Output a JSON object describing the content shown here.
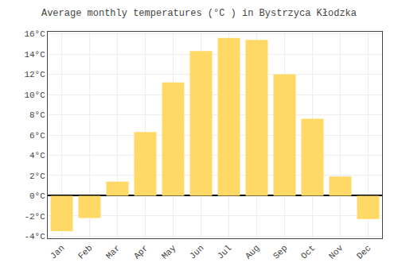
{
  "chart_data": {
    "type": "bar",
    "title": "Average monthly temperatures (°C ) in Bystrzyca Kłodzka",
    "categories": [
      "Jan",
      "Feb",
      "Mar",
      "Apr",
      "May",
      "Jun",
      "Jul",
      "Aug",
      "Sep",
      "Oct",
      "Nov",
      "Dec"
    ],
    "values": [
      -3.5,
      -2.2,
      1.4,
      6.3,
      11.2,
      14.3,
      15.6,
      15.4,
      12.0,
      7.6,
      1.9,
      -2.3
    ],
    "color": "#FFD966",
    "ylim": [
      -4.2,
      16.2
    ],
    "yticks": [
      {
        "value": -4,
        "label": "-4°C"
      },
      {
        "value": -2,
        "label": "-2°C"
      },
      {
        "value": 0,
        "label": "0°C"
      },
      {
        "value": 2,
        "label": "2°C"
      },
      {
        "value": 4,
        "label": "4°C"
      },
      {
        "value": 6,
        "label": "6°C"
      },
      {
        "value": 8,
        "label": "8°C"
      },
      {
        "value": 10,
        "label": "10°C"
      },
      {
        "value": 12,
        "label": "12°C"
      },
      {
        "value": 14,
        "label": "14°C"
      },
      {
        "value": 16,
        "label": "16°C"
      }
    ],
    "grid": true
  }
}
